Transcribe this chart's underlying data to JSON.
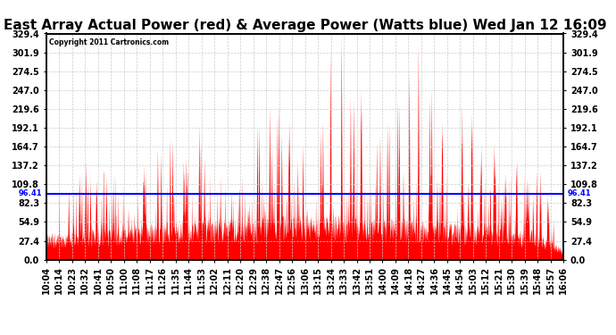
{
  "title": "East Array Actual Power (red) & Average Power (Watts blue) Wed Jan 12 16:09",
  "copyright": "Copyright 2011 Cartronics.com",
  "average_power": 96.41,
  "ymax": 329.4,
  "ymin": 0.0,
  "yticks": [
    0.0,
    27.4,
    54.9,
    82.3,
    109.8,
    137.2,
    164.7,
    192.1,
    219.6,
    247.0,
    274.5,
    301.9,
    329.4
  ],
  "avg_label": "96.41",
  "background_color": "#ffffff",
  "fill_color": "#ff0000",
  "line_color": "#0000ff",
  "title_fontsize": 11,
  "tick_fontsize": 7,
  "xtick_labels": [
    "10:04",
    "10:14",
    "10:23",
    "10:32",
    "10:41",
    "10:50",
    "11:00",
    "11:08",
    "11:17",
    "11:26",
    "11:35",
    "11:44",
    "11:53",
    "12:02",
    "12:11",
    "12:20",
    "12:29",
    "12:38",
    "12:47",
    "12:56",
    "13:06",
    "13:15",
    "13:24",
    "13:33",
    "13:42",
    "13:51",
    "14:00",
    "14:09",
    "14:18",
    "14:27",
    "14:36",
    "14:45",
    "14:54",
    "15:03",
    "15:12",
    "15:21",
    "15:30",
    "15:39",
    "15:48",
    "15:57",
    "16:06"
  ]
}
